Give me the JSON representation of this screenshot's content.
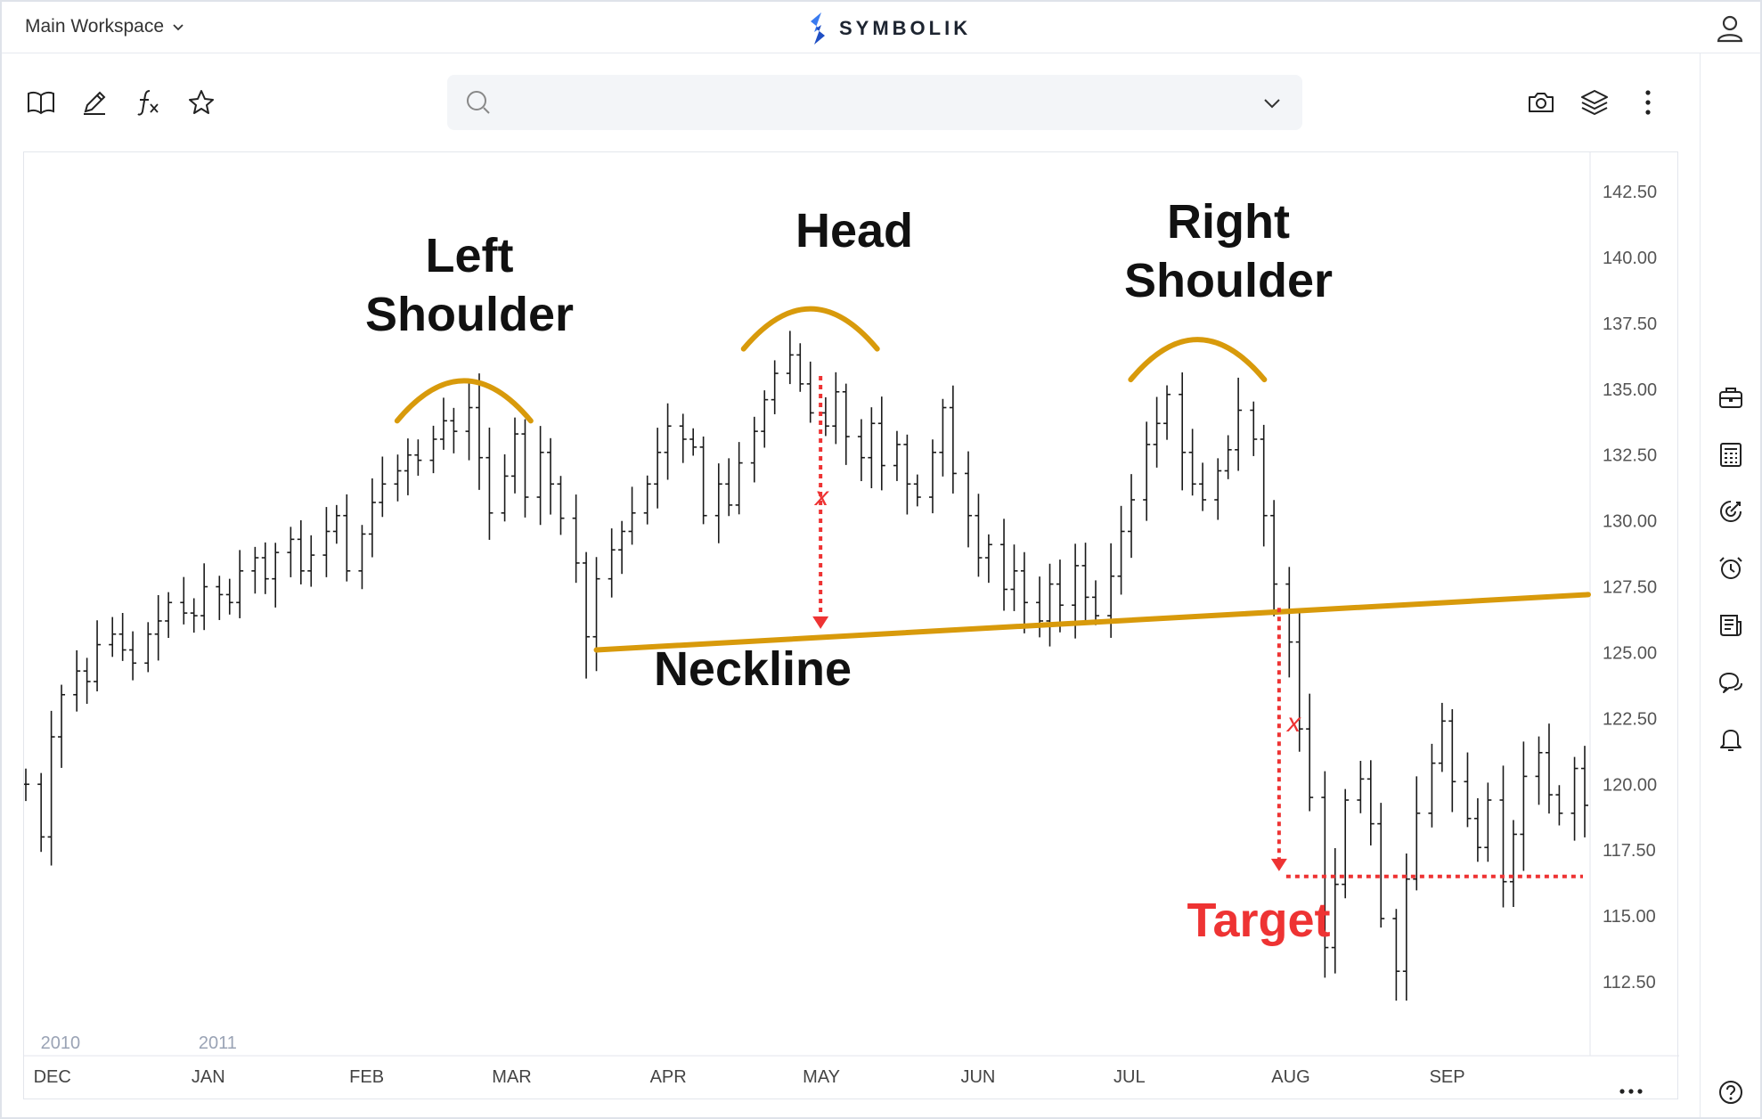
{
  "header": {
    "workspace_label": "Main Workspace",
    "brand_name": "SYMBOLIK"
  },
  "search": {
    "value": "",
    "placeholder": ""
  },
  "chart_data": {
    "type": "bar",
    "subtype": "ohlc",
    "title": "",
    "xlabel": "",
    "ylabel": "",
    "ylim": [
      110,
      143.5
    ],
    "yticks": [
      "142.50",
      "140.00",
      "137.50",
      "135.00",
      "132.50",
      "130.00",
      "127.50",
      "125.00",
      "122.50",
      "120.00",
      "117.50",
      "115.00",
      "112.50"
    ],
    "yticks_values": [
      142.5,
      140,
      137.5,
      135,
      132.5,
      130,
      127.5,
      125,
      122.5,
      120,
      117.5,
      115,
      112.5
    ],
    "xticks": [
      "DEC",
      "JAN",
      "FEB",
      "MAR",
      "APR",
      "MAY",
      "JUN",
      "JUL",
      "AUG",
      "SEP"
    ],
    "year_labels": [
      "2010",
      "2011"
    ],
    "x_start": "2010-11-26",
    "x_end": "2011-09-28",
    "xtick_dates": [
      "2010-12-01",
      "2011-01-01",
      "2011-02-01",
      "2011-03-01",
      "2011-04-01",
      "2011-05-01",
      "2011-06-01",
      "2011-07-01",
      "2011-08-01",
      "2011-09-01"
    ],
    "year_label_dates": [
      "2010-12-01",
      "2011-01-01"
    ],
    "grid": false,
    "bar_color": "#1a1a1a",
    "series": [
      {
        "values": [
          {
            "d": "2010-11-26",
            "c": 120
          },
          {
            "d": "2010-11-29",
            "c": 118
          },
          {
            "d": "2010-12-01",
            "c": 121.8
          },
          {
            "d": "2010-12-03",
            "c": 123.4
          },
          {
            "d": "2010-12-06",
            "c": 124.3
          },
          {
            "d": "2010-12-08",
            "c": 123.9
          },
          {
            "d": "2010-12-10",
            "c": 125.3
          },
          {
            "d": "2010-12-13",
            "c": 125.7
          },
          {
            "d": "2010-12-15",
            "c": 125.1
          },
          {
            "d": "2010-12-17",
            "c": 124.6
          },
          {
            "d": "2010-12-20",
            "c": 125.7
          },
          {
            "d": "2010-12-22",
            "c": 126.2
          },
          {
            "d": "2010-12-24",
            "c": 126.9
          },
          {
            "d": "2010-12-27",
            "c": 126.5
          },
          {
            "d": "2010-12-29",
            "c": 126.4
          },
          {
            "d": "2010-12-31",
            "c": 127.5
          },
          {
            "d": "2011-01-03",
            "c": 127.2
          },
          {
            "d": "2011-01-05",
            "c": 126.9
          },
          {
            "d": "2011-01-07",
            "c": 128.1
          },
          {
            "d": "2011-01-10",
            "c": 128.6
          },
          {
            "d": "2011-01-12",
            "c": 127.8
          },
          {
            "d": "2011-01-14",
            "c": 128.8
          },
          {
            "d": "2011-01-17",
            "c": 129.3
          },
          {
            "d": "2011-01-19",
            "c": 128.1
          },
          {
            "d": "2011-01-21",
            "c": 128.7
          },
          {
            "d": "2011-01-24",
            "c": 129.6
          },
          {
            "d": "2011-01-26",
            "c": 130.2
          },
          {
            "d": "2011-01-28",
            "c": 128.1
          },
          {
            "d": "2011-01-31",
            "c": 129.5
          },
          {
            "d": "2011-02-02",
            "c": 130.7
          },
          {
            "d": "2011-02-04",
            "c": 131.4
          },
          {
            "d": "2011-02-07",
            "c": 131.9
          },
          {
            "d": "2011-02-09",
            "c": 132.5
          },
          {
            "d": "2011-02-11",
            "c": 132.3
          },
          {
            "d": "2011-02-14",
            "c": 133.1
          },
          {
            "d": "2011-02-16",
            "c": 133.8
          },
          {
            "d": "2011-02-18",
            "c": 133.4
          },
          {
            "d": "2011-02-21",
            "c": 134.3
          },
          {
            "d": "2011-02-23",
            "c": 132.4
          },
          {
            "d": "2011-02-25",
            "c": 130.3
          },
          {
            "d": "2011-02-28",
            "c": 131.7
          },
          {
            "d": "2011-03-02",
            "c": 133.3
          },
          {
            "d": "2011-03-04",
            "c": 130.9
          },
          {
            "d": "2011-03-07",
            "c": 132.6
          },
          {
            "d": "2011-03-09",
            "c": 131.4
          },
          {
            "d": "2011-03-11",
            "c": 130.1
          },
          {
            "d": "2011-03-14",
            "c": 128.4
          },
          {
            "d": "2011-03-16",
            "c": 125.6
          },
          {
            "d": "2011-03-18",
            "c": 127.8
          },
          {
            "d": "2011-03-21",
            "c": 128.9
          },
          {
            "d": "2011-03-23",
            "c": 129.6
          },
          {
            "d": "2011-03-25",
            "c": 130.3
          },
          {
            "d": "2011-03-28",
            "c": 131.4
          },
          {
            "d": "2011-03-30",
            "c": 132.6
          },
          {
            "d": "2011-04-01",
            "c": 133.6
          },
          {
            "d": "2011-04-04",
            "c": 133.1
          },
          {
            "d": "2011-04-06",
            "c": 132.8
          },
          {
            "d": "2011-04-08",
            "c": 130.2
          },
          {
            "d": "2011-04-11",
            "c": 131.4
          },
          {
            "d": "2011-04-13",
            "c": 130.6
          },
          {
            "d": "2011-04-15",
            "c": 132.2
          },
          {
            "d": "2011-04-18",
            "c": 133.4
          },
          {
            "d": "2011-04-20",
            "c": 134.6
          },
          {
            "d": "2011-04-22",
            "c": 135.6
          },
          {
            "d": "2011-04-25",
            "c": 136.3
          },
          {
            "d": "2011-04-27",
            "c": 135.2
          },
          {
            "d": "2011-04-29",
            "c": 134.1
          },
          {
            "d": "2011-05-02",
            "c": 133.6
          },
          {
            "d": "2011-05-04",
            "c": 134.9
          },
          {
            "d": "2011-05-06",
            "c": 133.2
          },
          {
            "d": "2011-05-09",
            "c": 132.4
          },
          {
            "d": "2011-05-11",
            "c": 133.7
          },
          {
            "d": "2011-05-13",
            "c": 132.1
          },
          {
            "d": "2011-05-16",
            "c": 132.9
          },
          {
            "d": "2011-05-18",
            "c": 131.4
          },
          {
            "d": "2011-05-20",
            "c": 130.9
          },
          {
            "d": "2011-05-23",
            "c": 132.6
          },
          {
            "d": "2011-05-25",
            "c": 134.3
          },
          {
            "d": "2011-05-27",
            "c": 131.8
          },
          {
            "d": "2011-05-30",
            "c": 130.2
          },
          {
            "d": "2011-06-01",
            "c": 128.6
          },
          {
            "d": "2011-06-03",
            "c": 129.1
          },
          {
            "d": "2011-06-06",
            "c": 127.4
          },
          {
            "d": "2011-06-08",
            "c": 128.1
          },
          {
            "d": "2011-06-10",
            "c": 126.9
          },
          {
            "d": "2011-06-13",
            "c": 126.2
          },
          {
            "d": "2011-06-15",
            "c": 127.6
          },
          {
            "d": "2011-06-17",
            "c": 126.8
          },
          {
            "d": "2011-06-20",
            "c": 128.3
          },
          {
            "d": "2011-06-22",
            "c": 127.1
          },
          {
            "d": "2011-06-24",
            "c": 126.4
          },
          {
            "d": "2011-06-27",
            "c": 127.9
          },
          {
            "d": "2011-06-29",
            "c": 129.6
          },
          {
            "d": "2011-07-01",
            "c": 130.8
          },
          {
            "d": "2011-07-04",
            "c": 132.9
          },
          {
            "d": "2011-07-06",
            "c": 133.7
          },
          {
            "d": "2011-07-08",
            "c": 134.8
          },
          {
            "d": "2011-07-11",
            "c": 132.6
          },
          {
            "d": "2011-07-13",
            "c": 131.4
          },
          {
            "d": "2011-07-15",
            "c": 130.8
          },
          {
            "d": "2011-07-18",
            "c": 131.9
          },
          {
            "d": "2011-07-20",
            "c": 132.7
          },
          {
            "d": "2011-07-22",
            "c": 134.2
          },
          {
            "d": "2011-07-25",
            "c": 133.1
          },
          {
            "d": "2011-07-27",
            "c": 130.2
          },
          {
            "d": "2011-07-29",
            "c": 127.6
          },
          {
            "d": "2011-08-01",
            "c": 125.4
          },
          {
            "d": "2011-08-03",
            "c": 122.1
          },
          {
            "d": "2011-08-05",
            "c": 119.5
          },
          {
            "d": "2011-08-08",
            "c": 113.8
          },
          {
            "d": "2011-08-10",
            "c": 116.2
          },
          {
            "d": "2011-08-12",
            "c": 119.4
          },
          {
            "d": "2011-08-15",
            "c": 120.2
          },
          {
            "d": "2011-08-17",
            "c": 118.5
          },
          {
            "d": "2011-08-19",
            "c": 114.9
          },
          {
            "d": "2011-08-22",
            "c": 112.9
          },
          {
            "d": "2011-08-24",
            "c": 116.4
          },
          {
            "d": "2011-08-26",
            "c": 118.9
          },
          {
            "d": "2011-08-29",
            "c": 120.8
          },
          {
            "d": "2011-08-31",
            "c": 122.4
          },
          {
            "d": "2011-09-02",
            "c": 120.1
          },
          {
            "d": "2011-09-05",
            "c": 118.7
          },
          {
            "d": "2011-09-07",
            "c": 117.6
          },
          {
            "d": "2011-09-09",
            "c": 119.4
          },
          {
            "d": "2011-09-12",
            "c": 116.3
          },
          {
            "d": "2011-09-14",
            "c": 118.1
          },
          {
            "d": "2011-09-16",
            "c": 120.3
          },
          {
            "d": "2011-09-19",
            "c": 121.2
          },
          {
            "d": "2011-09-21",
            "c": 119.6
          },
          {
            "d": "2011-09-23",
            "c": 118.9
          },
          {
            "d": "2011-09-26",
            "c": 120.6
          },
          {
            "d": "2011-09-28",
            "c": 119.2
          }
        ]
      }
    ],
    "annotations": {
      "left_shoulder_line1": "Left",
      "left_shoulder_line2": "Shoulder",
      "head": "Head",
      "right_shoulder_line1": "Right",
      "right_shoulder_line2": "Shoulder",
      "neckline": "Neckline",
      "target": "Target",
      "measure_label_1": "x",
      "measure_label_2": "x",
      "neckline_start": {
        "d": "2011-03-18",
        "y": 125.1
      },
      "neckline_end": {
        "d": "2011-09-28",
        "y": 127.2
      },
      "target_value": 116.5,
      "head_measure": {
        "d": "2011-05-01",
        "from": 135.5,
        "to": 125.9
      },
      "target_measure": {
        "d": "2011-07-30",
        "from": 126.7,
        "to": 116.7
      },
      "arc_color": "#d89a0b",
      "neckline_color": "#d89a0b",
      "measure_color": "#ee3333"
    }
  }
}
